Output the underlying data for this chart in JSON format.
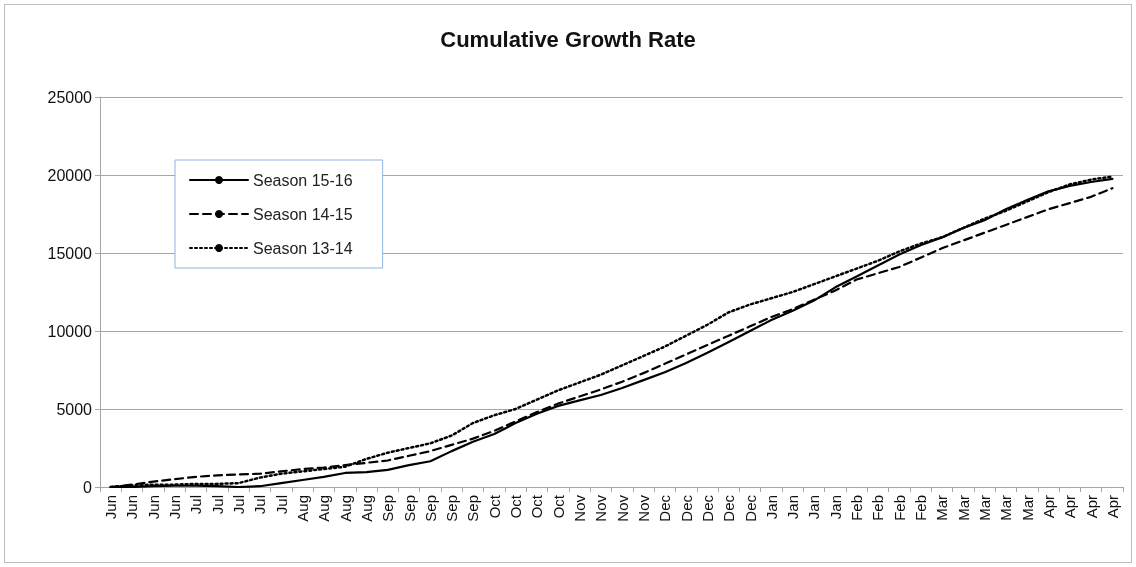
{
  "chart_data": {
    "type": "line",
    "title": "Cumulative Growth Rate",
    "categories": [
      "Jun",
      "Jun",
      "Jun",
      "Jun",
      "Jul",
      "Jul",
      "Jul",
      "Jul",
      "Jul",
      "Aug",
      "Aug",
      "Aug",
      "Aug",
      "Sep",
      "Sep",
      "Sep",
      "Sep",
      "Sep",
      "Oct",
      "Oct",
      "Oct",
      "Oct",
      "Nov",
      "Nov",
      "Nov",
      "Nov",
      "Dec",
      "Dec",
      "Dec",
      "Dec",
      "Dec",
      "Jan",
      "Jan",
      "Jan",
      "Jan",
      "Feb",
      "Feb",
      "Feb",
      "Feb",
      "Mar",
      "Mar",
      "Mar",
      "Mar",
      "Mar",
      "Apr",
      "Apr",
      "Apr",
      "Apr"
    ],
    "series": [
      {
        "name": "Season 15-16",
        "color": "#000000",
        "line_style": "solid",
        "values": [
          0,
          0,
          50,
          80,
          80,
          50,
          0,
          50,
          250,
          450,
          650,
          900,
          950,
          1100,
          1400,
          1650,
          2300,
          2900,
          3400,
          4100,
          4700,
          5200,
          5550,
          5900,
          6350,
          6850,
          7350,
          7950,
          8600,
          9300,
          10000,
          10700,
          11300,
          11950,
          12800,
          13500,
          14200,
          14900,
          15500,
          16000,
          16600,
          17100,
          17800,
          18400,
          18950,
          19300,
          19550,
          19750
        ]
      },
      {
        "name": "Season 14-15",
        "color": "#000000",
        "line_style": "dashed",
        "values": [
          0,
          150,
          350,
          500,
          650,
          750,
          800,
          850,
          1000,
          1150,
          1250,
          1400,
          1550,
          1700,
          2000,
          2300,
          2700,
          3100,
          3600,
          4200,
          4800,
          5350,
          5800,
          6250,
          6750,
          7300,
          7900,
          8500,
          9100,
          9700,
          10300,
          10900,
          11400,
          12000,
          12600,
          13300,
          13700,
          14100,
          14700,
          15300,
          15800,
          16300,
          16800,
          17300,
          17800,
          18200,
          18600,
          19150
        ]
      },
      {
        "name": "Season 13-14",
        "color": "#000000",
        "line_style": "dotted",
        "values": [
          0,
          100,
          150,
          150,
          200,
          200,
          250,
          600,
          850,
          1000,
          1150,
          1300,
          1800,
          2200,
          2500,
          2800,
          3300,
          4100,
          4600,
          5000,
          5600,
          6200,
          6700,
          7200,
          7800,
          8400,
          9000,
          9700,
          10400,
          11200,
          11700,
          12100,
          12500,
          13000,
          13500,
          14000,
          14500,
          15100,
          15600,
          16000,
          16600,
          17200,
          17700,
          18300,
          18900,
          19400,
          19700,
          19900
        ]
      }
    ],
    "ylim": [
      0,
      25000
    ],
    "yticks": [
      0,
      5000,
      10000,
      15000,
      20000,
      25000
    ],
    "grid": "y",
    "legend": "top left",
    "marker": "none"
  }
}
